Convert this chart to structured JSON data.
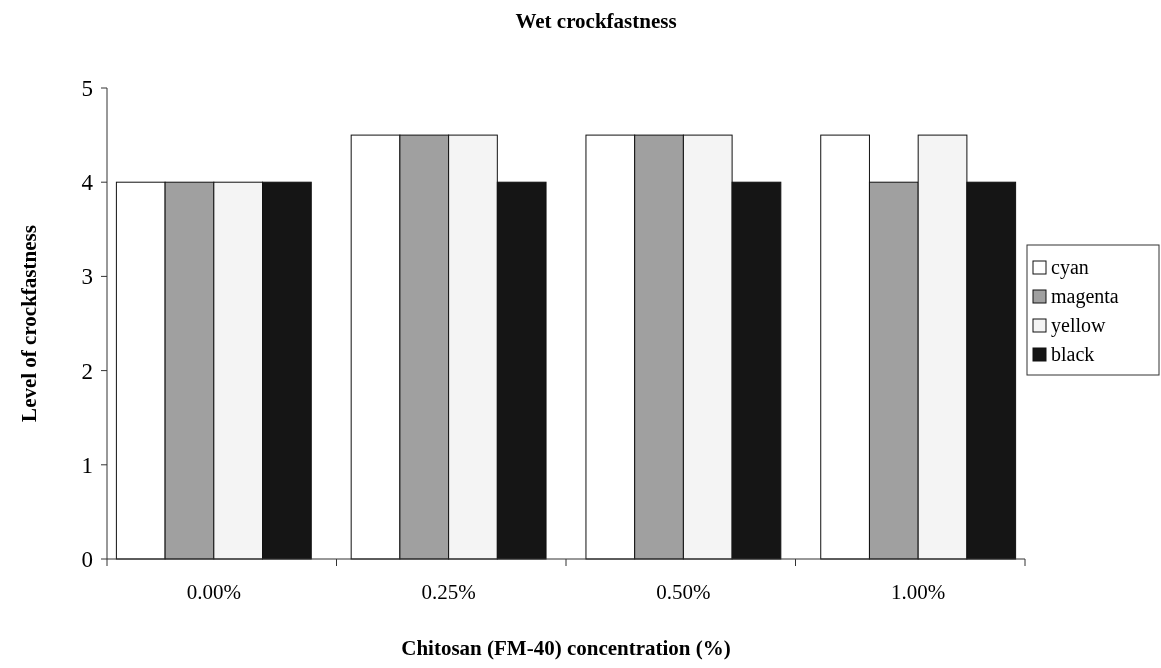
{
  "chart_data": {
    "type": "bar",
    "title": "Wet crockfastness",
    "xlabel": "Chitosan (FM-40) concentration (%)",
    "ylabel": "Level of crockfastness",
    "categories": [
      "0.00%",
      "0.25%",
      "0.50%",
      "1.00%"
    ],
    "series": [
      {
        "name": "cyan",
        "color": "#ffffff",
        "values": [
          4,
          4.5,
          4.5,
          4.5
        ]
      },
      {
        "name": "magenta",
        "color": "#a0a0a0",
        "values": [
          4,
          4.5,
          4.5,
          4
        ]
      },
      {
        "name": "yellow",
        "color": "#f4f4f4",
        "values": [
          4,
          4.5,
          4.5,
          4.5
        ]
      },
      {
        "name": "black",
        "color": "#151515",
        "values": [
          4,
          4,
          4,
          4
        ]
      }
    ],
    "ylim": [
      0,
      5
    ],
    "yticks": [
      0,
      1,
      2,
      3,
      4,
      5
    ],
    "legend": "right"
  }
}
